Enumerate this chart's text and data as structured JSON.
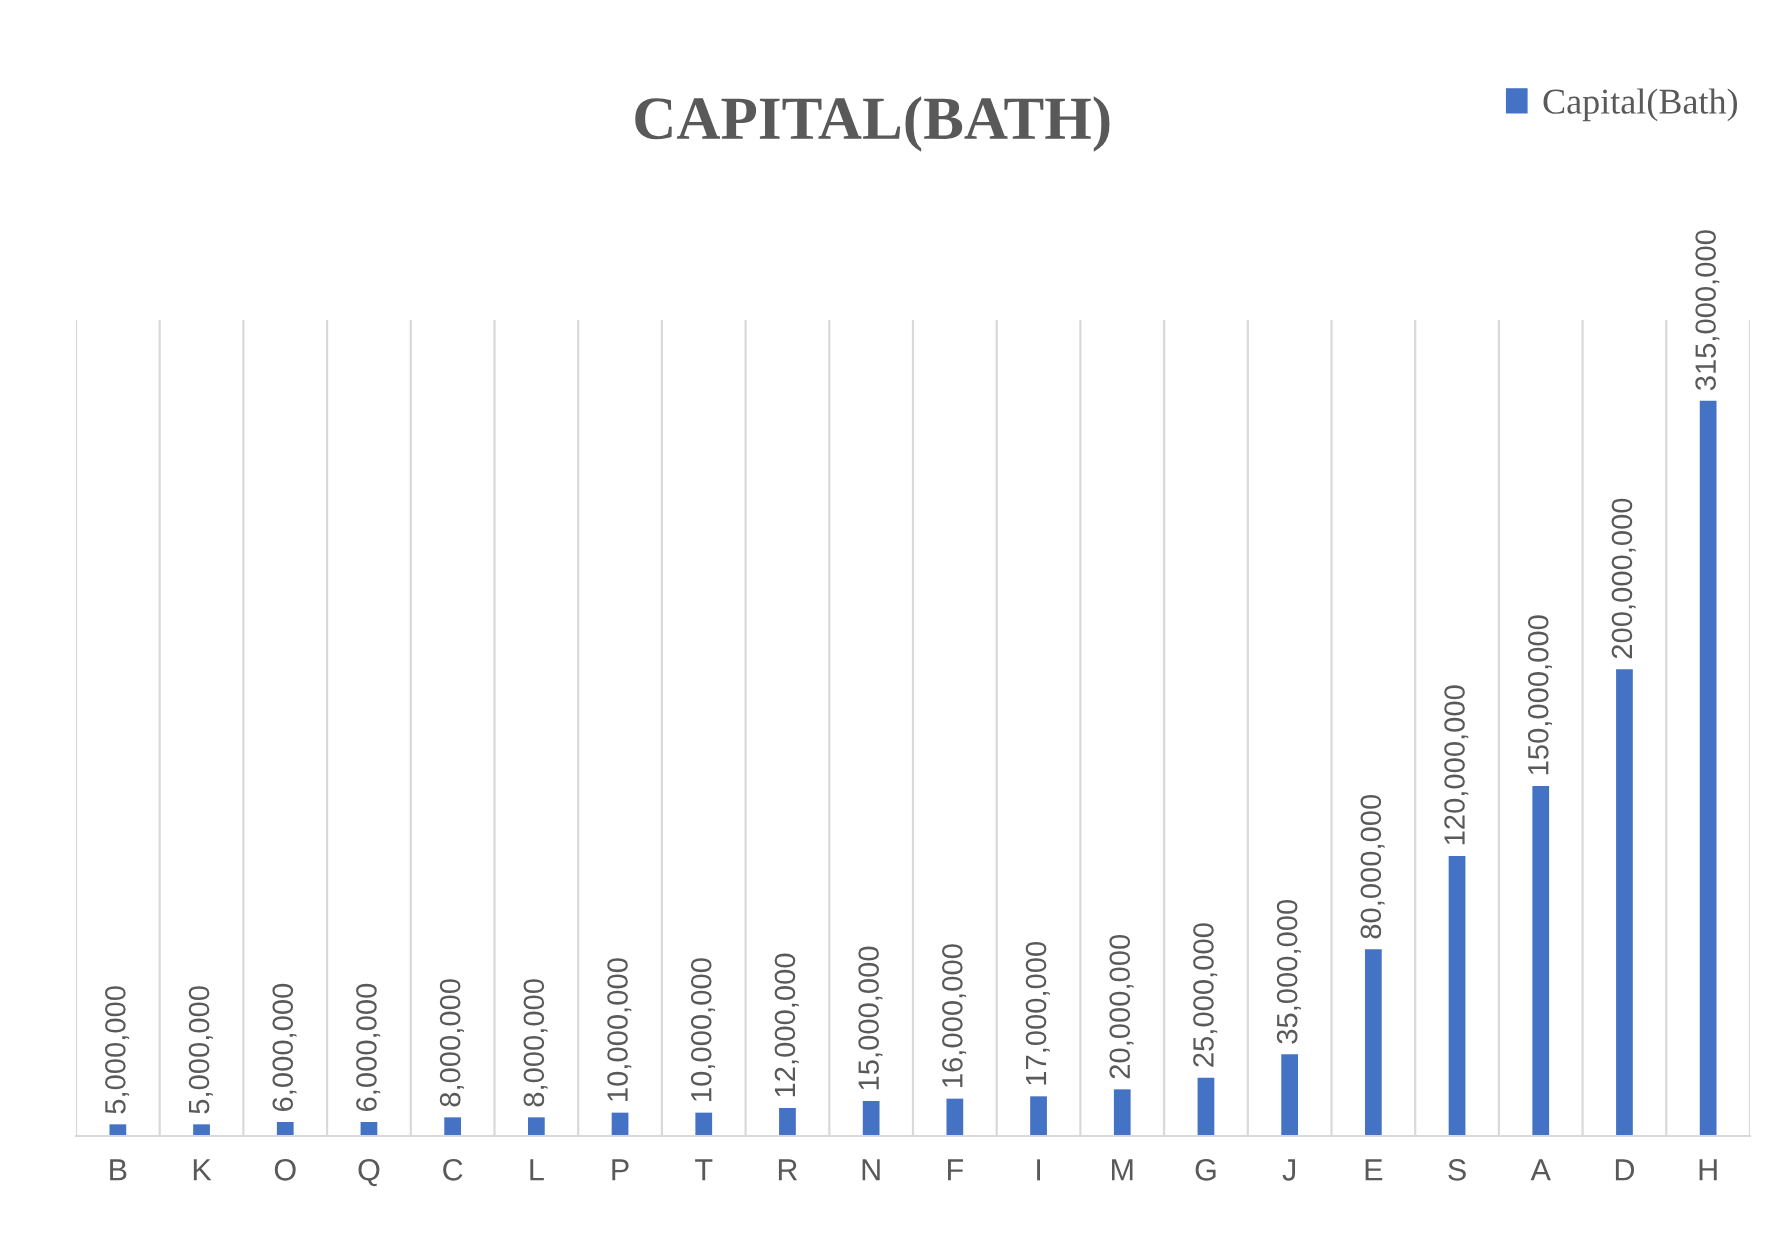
{
  "chart_data": {
    "type": "bar",
    "title": "CAPITAL(BATH)",
    "categories": [
      "B",
      "K",
      "O",
      "Q",
      "C",
      "L",
      "P",
      "T",
      "R",
      "N",
      "F",
      "I",
      "M",
      "G",
      "J",
      "E",
      "S",
      "A",
      "D",
      "H"
    ],
    "series": [
      {
        "name": "Capital(Bath)",
        "color": "#4472c4",
        "values": [
          5000000,
          5000000,
          6000000,
          6000000,
          8000000,
          8000000,
          10000000,
          10000000,
          12000000,
          15000000,
          16000000,
          17000000,
          20000000,
          25000000,
          35000000,
          80000000,
          120000000,
          150000000,
          200000000,
          315000000
        ],
        "value_labels": [
          "5,000,000",
          "5,000,000",
          "6,000,000",
          "6,000,000",
          "8,000,000",
          "8,000,000",
          "10,000,000",
          "10,000,000",
          "12,000,000",
          "15,000,000",
          "16,000,000",
          "17,000,000",
          "20,000,000",
          "25,000,000",
          "35,000,000",
          "80,000,000",
          "120,000,000",
          "150,000,000",
          "200,000,000",
          "315,000,000"
        ]
      }
    ],
    "grid": "x",
    "legend": "top right"
  }
}
